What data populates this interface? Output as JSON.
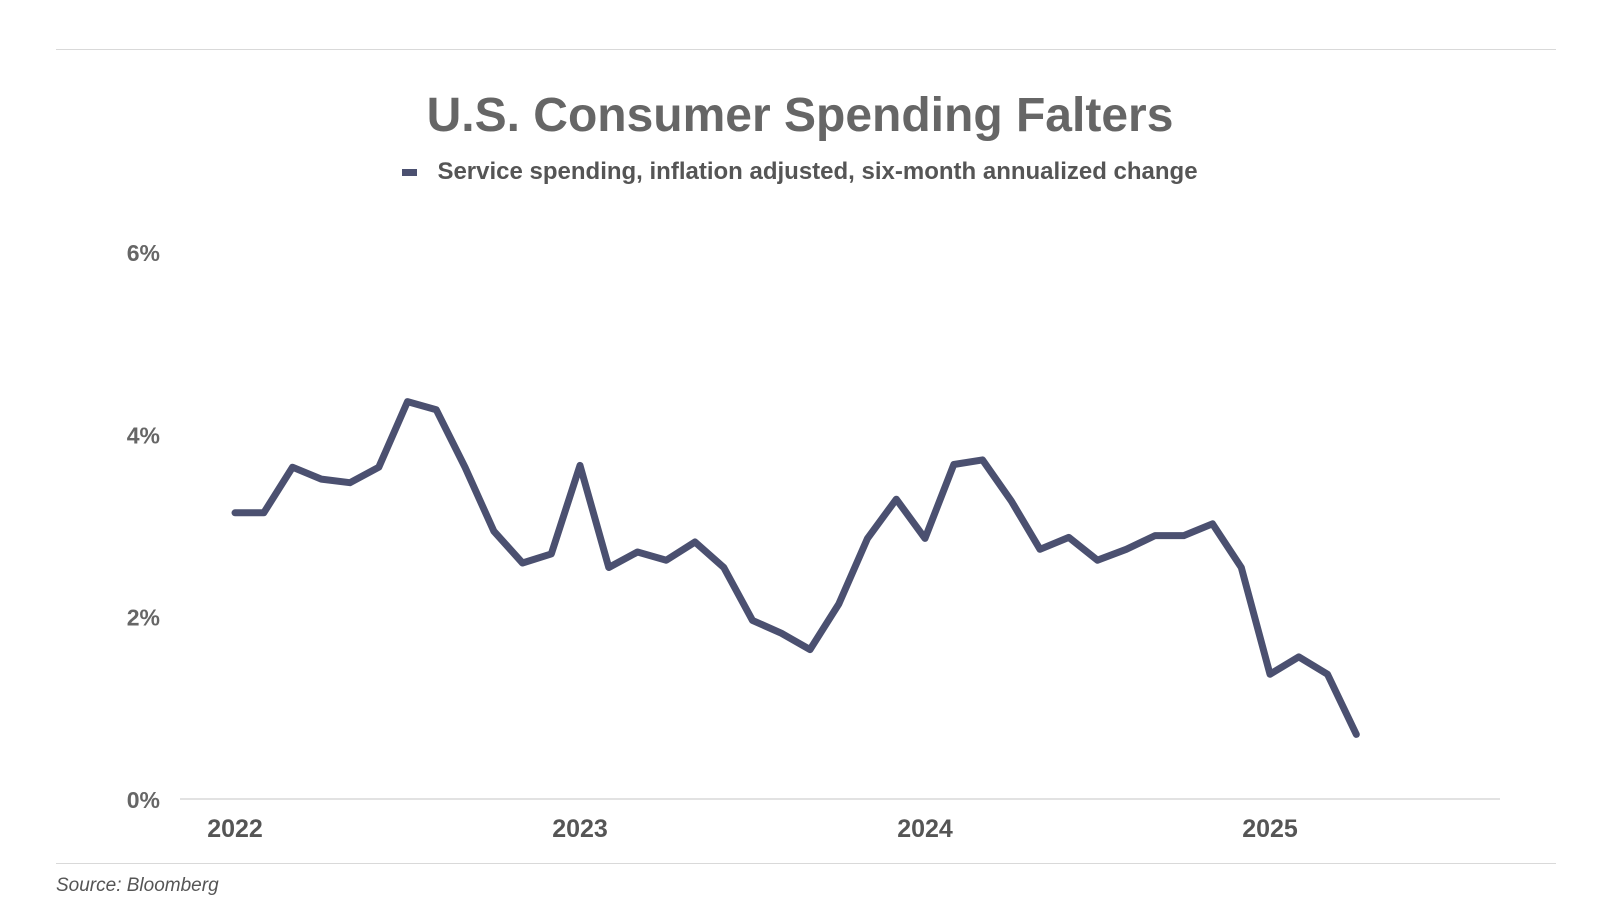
{
  "chart_data": {
    "type": "line",
    "title": "U.S. Consumer Spending Falters",
    "subtitle": "",
    "xlabel": "",
    "ylabel": "",
    "source": "Source: Bloomberg",
    "y_ticks": [
      "0%",
      "2%",
      "4%",
      "6%"
    ],
    "x_ticks": [
      "2022",
      "2023",
      "2024",
      "2025"
    ],
    "ylim": [
      0,
      6
    ],
    "x_unit": "date",
    "grid": false,
    "legend_position": "top-center",
    "series": [
      {
        "name": "Service spending, inflation adjusted, six-month annualized change",
        "color": "#4b5070",
        "points": [
          [
            "2022-01",
            3.15
          ],
          [
            "2022-02",
            3.15
          ],
          [
            "2022-03",
            3.65
          ],
          [
            "2022-04",
            3.52
          ],
          [
            "2022-05",
            3.48
          ],
          [
            "2022-06",
            3.65
          ],
          [
            "2022-07",
            4.37
          ],
          [
            "2022-08",
            4.28
          ],
          [
            "2022-09",
            3.65
          ],
          [
            "2022-10",
            2.95
          ],
          [
            "2022-11",
            2.6
          ],
          [
            "2022-12",
            2.7
          ],
          [
            "2023-01",
            3.67
          ],
          [
            "2023-02",
            2.55
          ],
          [
            "2023-03",
            2.72
          ],
          [
            "2023-04",
            2.63
          ],
          [
            "2023-05",
            2.83
          ],
          [
            "2023-06",
            2.55
          ],
          [
            "2023-07",
            1.97
          ],
          [
            "2023-08",
            1.83
          ],
          [
            "2023-09",
            1.65
          ],
          [
            "2023-10",
            2.15
          ],
          [
            "2023-11",
            2.87
          ],
          [
            "2023-12",
            3.3
          ],
          [
            "2024-01",
            2.87
          ],
          [
            "2024-02",
            3.68
          ],
          [
            "2024-03",
            3.73
          ],
          [
            "2024-04",
            3.28
          ],
          [
            "2024-05",
            2.75
          ],
          [
            "2024-06",
            2.88
          ],
          [
            "2024-07",
            2.63
          ],
          [
            "2024-08",
            2.75
          ],
          [
            "2024-09",
            2.9
          ],
          [
            "2024-10",
            2.9
          ],
          [
            "2024-11",
            3.03
          ],
          [
            "2024-12",
            2.55
          ],
          [
            "2025-01",
            1.38
          ],
          [
            "2025-02",
            1.57
          ],
          [
            "2025-03",
            1.38
          ],
          [
            "2025-04",
            0.72
          ]
        ]
      }
    ]
  }
}
